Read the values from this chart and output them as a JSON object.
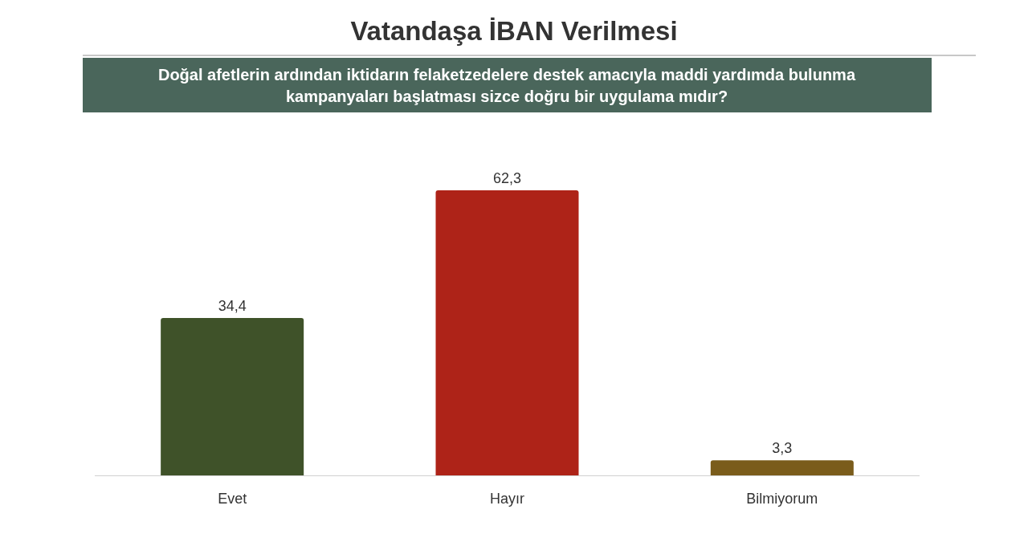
{
  "chart_data": {
    "type": "bar",
    "title": "Vatandaşa İBAN Verilmesi",
    "subtitle": "Doğal afetlerin ardından iktidarın felaketzedelere destek amacıyla maddi yardımda bulunma kampanyaları başlatması sizce doğru bir uygulama mıdır?",
    "categories": [
      "Evet",
      "Hayır",
      "Bilmiyorum"
    ],
    "values": [
      34.4,
      62.3,
      3.3
    ],
    "colors": [
      "#3f5229",
      "#ae2318",
      "#7a5c1b"
    ],
    "value_labels": [
      "34,4",
      "62,3",
      "3,3"
    ],
    "grid": false
  }
}
